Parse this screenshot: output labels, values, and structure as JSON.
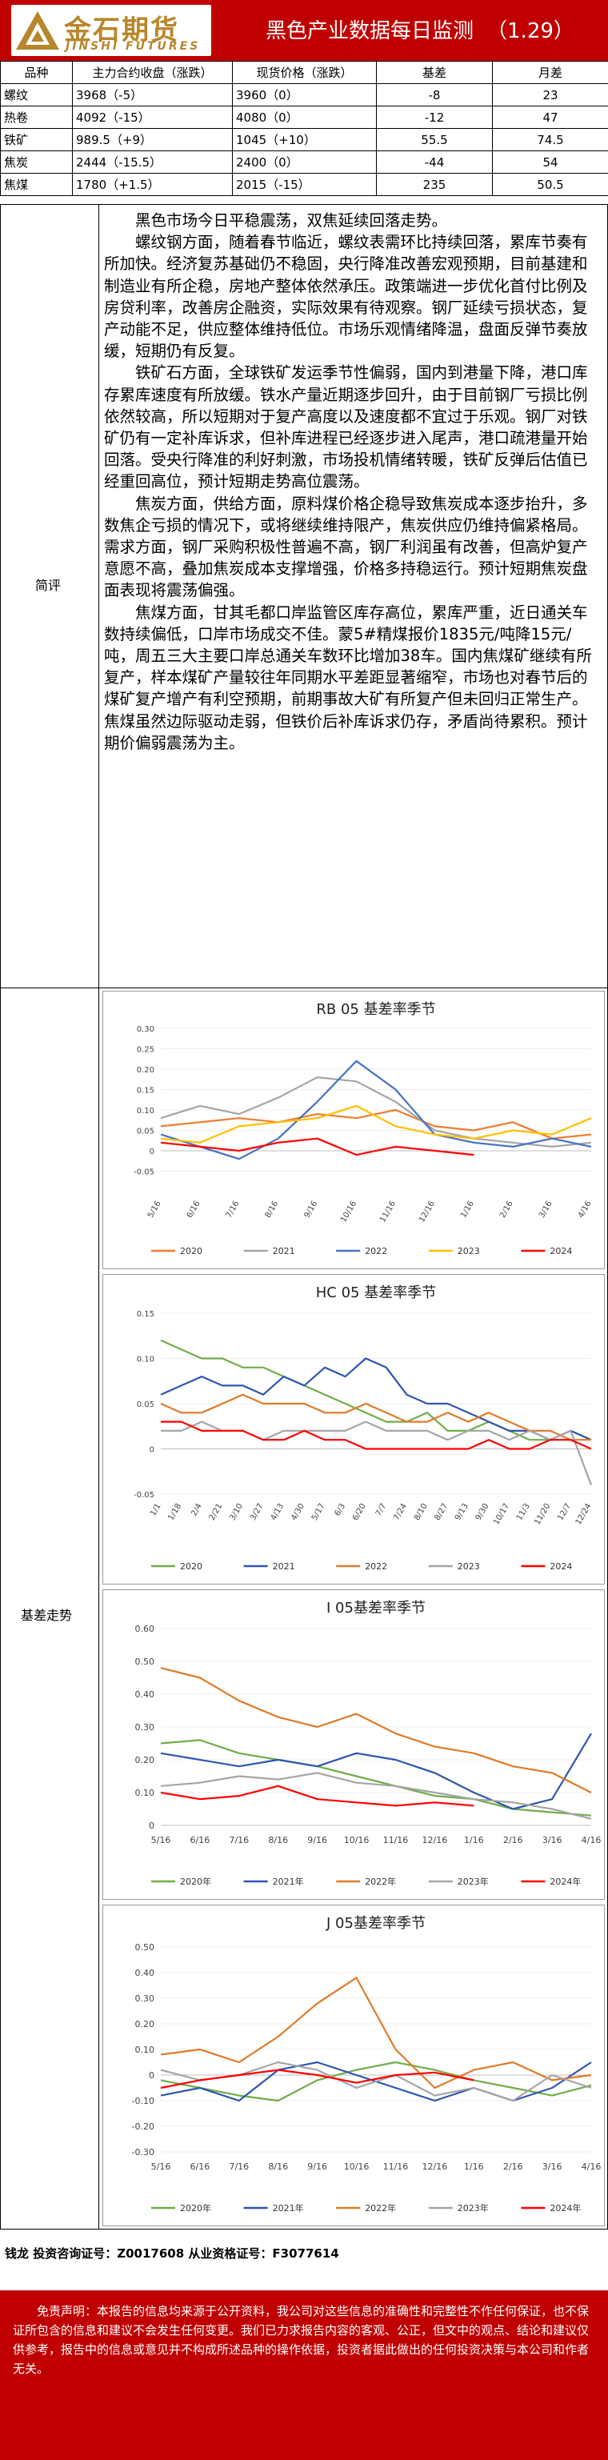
{
  "header": {
    "logo_cn": "金石期货",
    "logo_en": "JINSHI FUTURES",
    "title": "黑色产业数据每日监测",
    "date": "（1.29）"
  },
  "table": {
    "headers": [
      "品种",
      "主力合约收盘（涨跌）",
      "现货价格（涨跌）",
      "基差",
      "月差"
    ],
    "rows": [
      [
        "螺纹",
        "3968（-5）",
        "3960（0）",
        "-8",
        "23"
      ],
      [
        "热卷",
        "4092（-15）",
        "4080（0）",
        "-12",
        "47"
      ],
      [
        "铁矿",
        "989.5（+9）",
        "1045（+10）",
        "55.5",
        "74.5"
      ],
      [
        "焦炭",
        "2444（-15.5）",
        "2400（0）",
        "-44",
        "54"
      ],
      [
        "焦煤",
        "1780（+1.5）",
        "2015（-15）",
        "235",
        "50.5"
      ]
    ]
  },
  "labels": {
    "comment": "简评",
    "basis": "基差走势"
  },
  "comment": {
    "p1": "黑色市场今日平稳震荡，双焦延续回落走势。",
    "p2": "螺纹钢方面，随着春节临近，螺纹表需环比持续回落，累库节奏有所加快。经济复苏基础仍不稳固，央行降准改善宏观预期，目前基建和制造业有所企稳，房地产整体依然承压。政策端进一步优化首付比例及房贷利率，改善房企融资，实际效果有待观察。钢厂延续亏损状态，复产动能不足，供应整体维持低位。市场乐观情绪降温，盘面反弹节奏放缓，短期仍有反复。",
    "p3": "铁矿石方面，全球铁矿发运季节性偏弱，国内到港量下降，港口库存累库速度有所放缓。铁水产量近期逐步回升，由于目前钢厂亏损比例依然较高，所以短期对于复产高度以及速度都不宜过于乐观。钢厂对铁矿仍有一定补库诉求，但补库进程已经逐步进入尾声，港口疏港量开始回落。受央行降准的利好刺激，市场投机情绪转暖，铁矿反弹后估值已经重回高位，预计短期走势高位震荡。",
    "p4": "焦炭方面，供给方面，原料煤价格企稳导致焦炭成本逐步抬升，多数焦企亏损的情况下，或将继续维持限产，焦炭供应仍维持偏紧格局。需求方面，钢厂采购积极性普遍不高，钢厂利润虽有改善，但高炉复产意愿不高，叠加焦炭成本支撑增强，价格多持稳运行。预计短期焦炭盘面表现将震荡偏强。",
    "p5": "焦煤方面，甘其毛都口岸监管区库存高位，累库严重，近日通关车数持续偏低，口岸市场成交不佳。蒙5#精煤报价1835元/吨降15元/吨，周五三大主要口岸总通关车数环比增加38车。国内焦煤矿继续有所复产，样本煤矿产量较往年同期水平差距显著缩窄，市场也对春节后的煤矿复产增产有利空预期，前期事故大矿有所复产但未回归正常生产。焦煤虽然边际驱动走弱，但铁价后补库诉求仍存，矛盾尚待累积。预计期价偏弱震荡为主。"
  },
  "colors": {
    "brand_red": "#c00000",
    "s2020": "#ed7d31",
    "s2021": "#a5a5a5",
    "s2022": "#4472c4",
    "s2023": "#ffc000",
    "s2024": "#ff0000",
    "s_green": "#70ad47",
    "s_blue": "#2f55b0",
    "s_orange": "#e07a28",
    "s_gray": "#a5a5a5",
    "s_red": "#ff0000"
  },
  "chart_data": [
    {
      "type": "line",
      "title": "RB 05 基差率季节",
      "x": [
        "5/16",
        "6/16",
        "7/16",
        "8/16",
        "9/16",
        "10/16",
        "11/16",
        "12/16",
        "1/16",
        "2/16",
        "3/16",
        "4/16"
      ],
      "ylim": [
        -0.1,
        0.3
      ],
      "yticks": [
        -0.05,
        0,
        0.05,
        0.1,
        0.15,
        0.2,
        0.25,
        0.3
      ],
      "ytick_labels": [
        "-0.05",
        "0",
        "0.05",
        "0.10",
        "0.15",
        "0.20",
        "0.25",
        "0.30"
      ],
      "legend": "bottom",
      "series": [
        {
          "name": "2020",
          "values": [
            0.06,
            0.07,
            0.08,
            0.07,
            0.09,
            0.08,
            0.1,
            0.06,
            0.05,
            0.07,
            0.03,
            0.04
          ]
        },
        {
          "name": "2021",
          "values": [
            0.08,
            0.11,
            0.09,
            0.13,
            0.18,
            0.17,
            0.12,
            0.05,
            0.03,
            0.02,
            0.01,
            0.02
          ]
        },
        {
          "name": "2022",
          "values": [
            0.04,
            0.01,
            -0.02,
            0.03,
            0.12,
            0.22,
            0.15,
            0.04,
            0.02,
            0.01,
            0.03,
            0.01
          ]
        },
        {
          "name": "2023",
          "values": [
            0.03,
            0.02,
            0.06,
            0.07,
            0.08,
            0.11,
            0.06,
            0.04,
            0.03,
            0.05,
            0.04,
            0.08
          ]
        },
        {
          "name": "2024",
          "values": [
            0.02,
            0.01,
            0.0,
            0.02,
            0.03,
            -0.01,
            0.01,
            0.0,
            -0.01,
            null,
            null,
            null
          ]
        }
      ]
    },
    {
      "type": "line",
      "title": "HC 05 基差率季节",
      "x": [
        "1/1",
        "1/18",
        "2/4",
        "2/21",
        "3/10",
        "3/27",
        "4/13",
        "4/30",
        "5/17",
        "6/3",
        "6/20",
        "7/7",
        "7/24",
        "8/10",
        "8/27",
        "9/13",
        "9/30",
        "10/17",
        "11/3",
        "11/20",
        "12/7",
        "12/24"
      ],
      "ylim": [
        -0.05,
        0.15
      ],
      "yticks": [
        -0.05,
        0,
        0.05,
        0.1,
        0.15
      ],
      "ytick_labels": [
        "-0.05",
        "0",
        "0.05",
        "0.10",
        "0.15"
      ],
      "legend": "bottom",
      "series": [
        {
          "name": "2020",
          "values": [
            0.12,
            0.11,
            0.1,
            0.1,
            0.09,
            0.09,
            0.08,
            0.07,
            0.06,
            0.05,
            0.04,
            0.03,
            0.03,
            0.04,
            0.02,
            0.02,
            0.03,
            0.02,
            0.01,
            0.01,
            0.02,
            0.01
          ]
        },
        {
          "name": "2021",
          "values": [
            0.06,
            0.07,
            0.08,
            0.07,
            0.07,
            0.06,
            0.08,
            0.07,
            0.09,
            0.08,
            0.1,
            0.09,
            0.06,
            0.05,
            0.05,
            0.04,
            0.03,
            0.02,
            0.02,
            0.01,
            0.02,
            0.01
          ]
        },
        {
          "name": "2022",
          "values": [
            0.05,
            0.04,
            0.04,
            0.05,
            0.06,
            0.05,
            0.05,
            0.05,
            0.04,
            0.04,
            0.05,
            0.04,
            0.03,
            0.03,
            0.04,
            0.03,
            0.04,
            0.03,
            0.02,
            0.02,
            0.01,
            0.01
          ]
        },
        {
          "name": "2023",
          "values": [
            0.02,
            0.02,
            0.03,
            0.02,
            0.02,
            0.01,
            0.02,
            0.02,
            0.02,
            0.02,
            0.03,
            0.02,
            0.02,
            0.02,
            0.01,
            0.02,
            0.02,
            0.01,
            0.02,
            0.01,
            0.02,
            -0.04
          ]
        },
        {
          "name": "2024",
          "values": [
            0.03,
            0.03,
            0.02,
            0.02,
            0.02,
            0.01,
            0.01,
            0.02,
            0.01,
            0.01,
            0.0,
            0.0,
            0.0,
            0.0,
            0.0,
            0.0,
            0.01,
            0.0,
            0.0,
            0.01,
            0.01,
            0.0
          ]
        }
      ]
    },
    {
      "type": "line",
      "title": "I 05基差率季节",
      "x": [
        "5/16",
        "6/16",
        "7/16",
        "8/16",
        "9/16",
        "10/16",
        "11/16",
        "12/16",
        "1/16",
        "2/16",
        "3/16",
        "4/16"
      ],
      "ylim": [
        0,
        0.6
      ],
      "yticks": [
        0,
        0.1,
        0.2,
        0.3,
        0.4,
        0.5,
        0.6
      ],
      "ytick_labels": [
        "0",
        "0.10",
        "0.20",
        "0.30",
        "0.40",
        "0.50",
        "0.60"
      ],
      "legend": "bottom",
      "series": [
        {
          "name": "2020年",
          "values": [
            0.25,
            0.26,
            0.22,
            0.2,
            0.18,
            0.15,
            0.12,
            0.09,
            0.08,
            0.05,
            0.04,
            0.03
          ]
        },
        {
          "name": "2021年",
          "values": [
            0.22,
            0.2,
            0.18,
            0.2,
            0.18,
            0.22,
            0.2,
            0.16,
            0.1,
            0.05,
            0.08,
            0.28
          ]
        },
        {
          "name": "2022年",
          "values": [
            0.48,
            0.45,
            0.38,
            0.33,
            0.3,
            0.34,
            0.28,
            0.24,
            0.22,
            0.18,
            0.16,
            0.1
          ]
        },
        {
          "name": "2023年",
          "values": [
            0.12,
            0.13,
            0.15,
            0.14,
            0.16,
            0.13,
            0.12,
            0.1,
            0.08,
            0.07,
            0.05,
            0.02
          ]
        },
        {
          "name": "2024年",
          "values": [
            0.1,
            0.08,
            0.09,
            0.12,
            0.08,
            0.07,
            0.06,
            0.07,
            0.06,
            null,
            null,
            null
          ]
        }
      ]
    },
    {
      "type": "line",
      "title": "J 05基差率季节",
      "x": [
        "5/16",
        "6/16",
        "7/16",
        "8/16",
        "9/16",
        "10/16",
        "11/16",
        "12/16",
        "1/16",
        "2/16",
        "3/16",
        "4/16"
      ],
      "ylim": [
        -0.3,
        0.5
      ],
      "yticks": [
        -0.3,
        -0.2,
        -0.1,
        0,
        0.1,
        0.2,
        0.3,
        0.4,
        0.5
      ],
      "ytick_labels": [
        "-0.30",
        "-0.20",
        "-0.10",
        "0",
        "0.10",
        "0.20",
        "0.30",
        "0.40",
        "0.50"
      ],
      "legend": "bottom",
      "series": [
        {
          "name": "2020年",
          "values": [
            -0.02,
            -0.05,
            -0.08,
            -0.1,
            -0.02,
            0.02,
            0.05,
            0.02,
            -0.02,
            -0.05,
            -0.08,
            -0.04
          ]
        },
        {
          "name": "2021年",
          "values": [
            -0.08,
            -0.05,
            -0.1,
            0.02,
            0.05,
            0.0,
            -0.05,
            -0.1,
            -0.05,
            -0.1,
            -0.05,
            0.05
          ]
        },
        {
          "name": "2022年",
          "values": [
            0.08,
            0.1,
            0.05,
            0.15,
            0.28,
            0.38,
            0.1,
            -0.05,
            0.02,
            0.05,
            -0.02,
            0.0
          ]
        },
        {
          "name": "2023年",
          "values": [
            0.02,
            -0.02,
            0.0,
            0.05,
            0.02,
            -0.05,
            0.0,
            -0.08,
            -0.05,
            -0.1,
            0.0,
            -0.05
          ]
        },
        {
          "name": "2024年",
          "values": [
            -0.05,
            -0.02,
            0.0,
            0.02,
            0.0,
            -0.03,
            0.0,
            0.01,
            -0.02,
            null,
            null,
            null
          ]
        }
      ]
    }
  ],
  "footer": {
    "credential": "钱龙  投资咨询证号：Z0017608  从业资格证号：F3077614",
    "disclaimer": "免责声明：本报告的信息均来源于公开资料，我公司对这些信息的准确性和完整性不作任何保证，也不保证所包含的信息和建议不会发生任何变更。我们已力求报告内容的客观、公正，但文中的观点、结论和建议仅供参考，报告中的信息或意见并不构成所述品种的操作依据，投资者据此做出的任何投资决策与本公司和作者无关。"
  }
}
